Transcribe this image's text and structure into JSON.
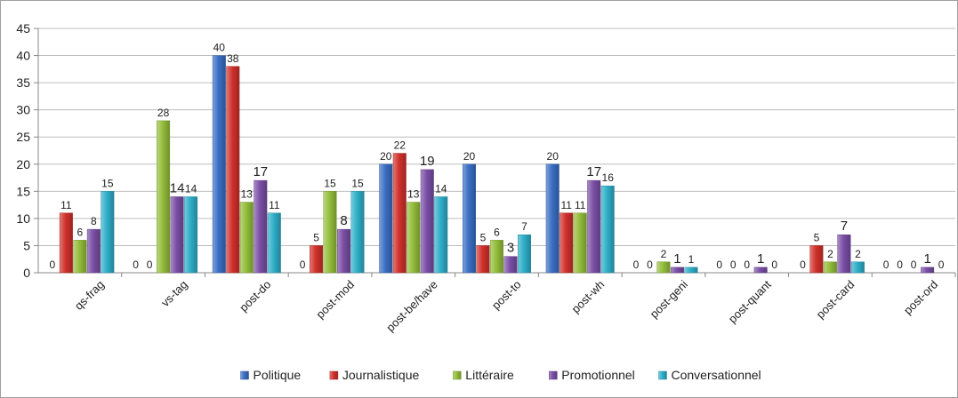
{
  "chart_data": {
    "type": "bar",
    "title": "",
    "xlabel": "",
    "ylabel": "",
    "ylim": [
      0,
      45
    ],
    "yticks": [
      0,
      5,
      10,
      15,
      20,
      25,
      30,
      35,
      40,
      45
    ],
    "grid": "horizontal",
    "legend_position": "bottom",
    "categories": [
      "qs-frag",
      "vs-tag",
      "post-do",
      "post-mod",
      "post-be/have",
      "post-to",
      "post-wh",
      "post-geni",
      "post-quant",
      "post-card",
      "post-ord"
    ],
    "series": [
      {
        "name": "Politique",
        "color": "#3B6FC4",
        "values": [
          0,
          0,
          40,
          0,
          20,
          20,
          20,
          0,
          0,
          0,
          0
        ]
      },
      {
        "name": "Journalistique",
        "color": "#D1312B",
        "values": [
          11,
          0,
          38,
          5,
          22,
          5,
          11,
          0,
          0,
          5,
          0
        ]
      },
      {
        "name": "Littéraire",
        "color": "#94BE3B",
        "values": [
          6,
          28,
          13,
          15,
          13,
          6,
          11,
          2,
          0,
          2,
          0
        ]
      },
      {
        "name": "Promotionnel",
        "color": "#7A4FA6",
        "values": [
          8,
          14,
          17,
          8,
          19,
          3,
          17,
          1,
          1,
          7,
          1
        ]
      },
      {
        "name": "Conversationnel",
        "color": "#2FAFC9",
        "values": [
          15,
          14,
          11,
          15,
          14,
          7,
          16,
          1,
          0,
          2,
          0
        ]
      }
    ],
    "big_labels": [
      [
        false,
        false,
        false,
        false,
        false
      ],
      [
        false,
        false,
        false,
        true,
        false
      ],
      [
        false,
        false,
        false,
        true,
        false
      ],
      [
        false,
        false,
        false,
        true,
        false
      ],
      [
        false,
        false,
        false,
        true,
        false
      ],
      [
        false,
        false,
        false,
        true,
        false
      ],
      [
        false,
        false,
        false,
        true,
        false
      ],
      [
        false,
        false,
        false,
        true,
        false
      ],
      [
        false,
        false,
        false,
        true,
        false
      ],
      [
        false,
        false,
        false,
        true,
        false
      ],
      [
        false,
        false,
        false,
        true,
        false
      ]
    ]
  }
}
